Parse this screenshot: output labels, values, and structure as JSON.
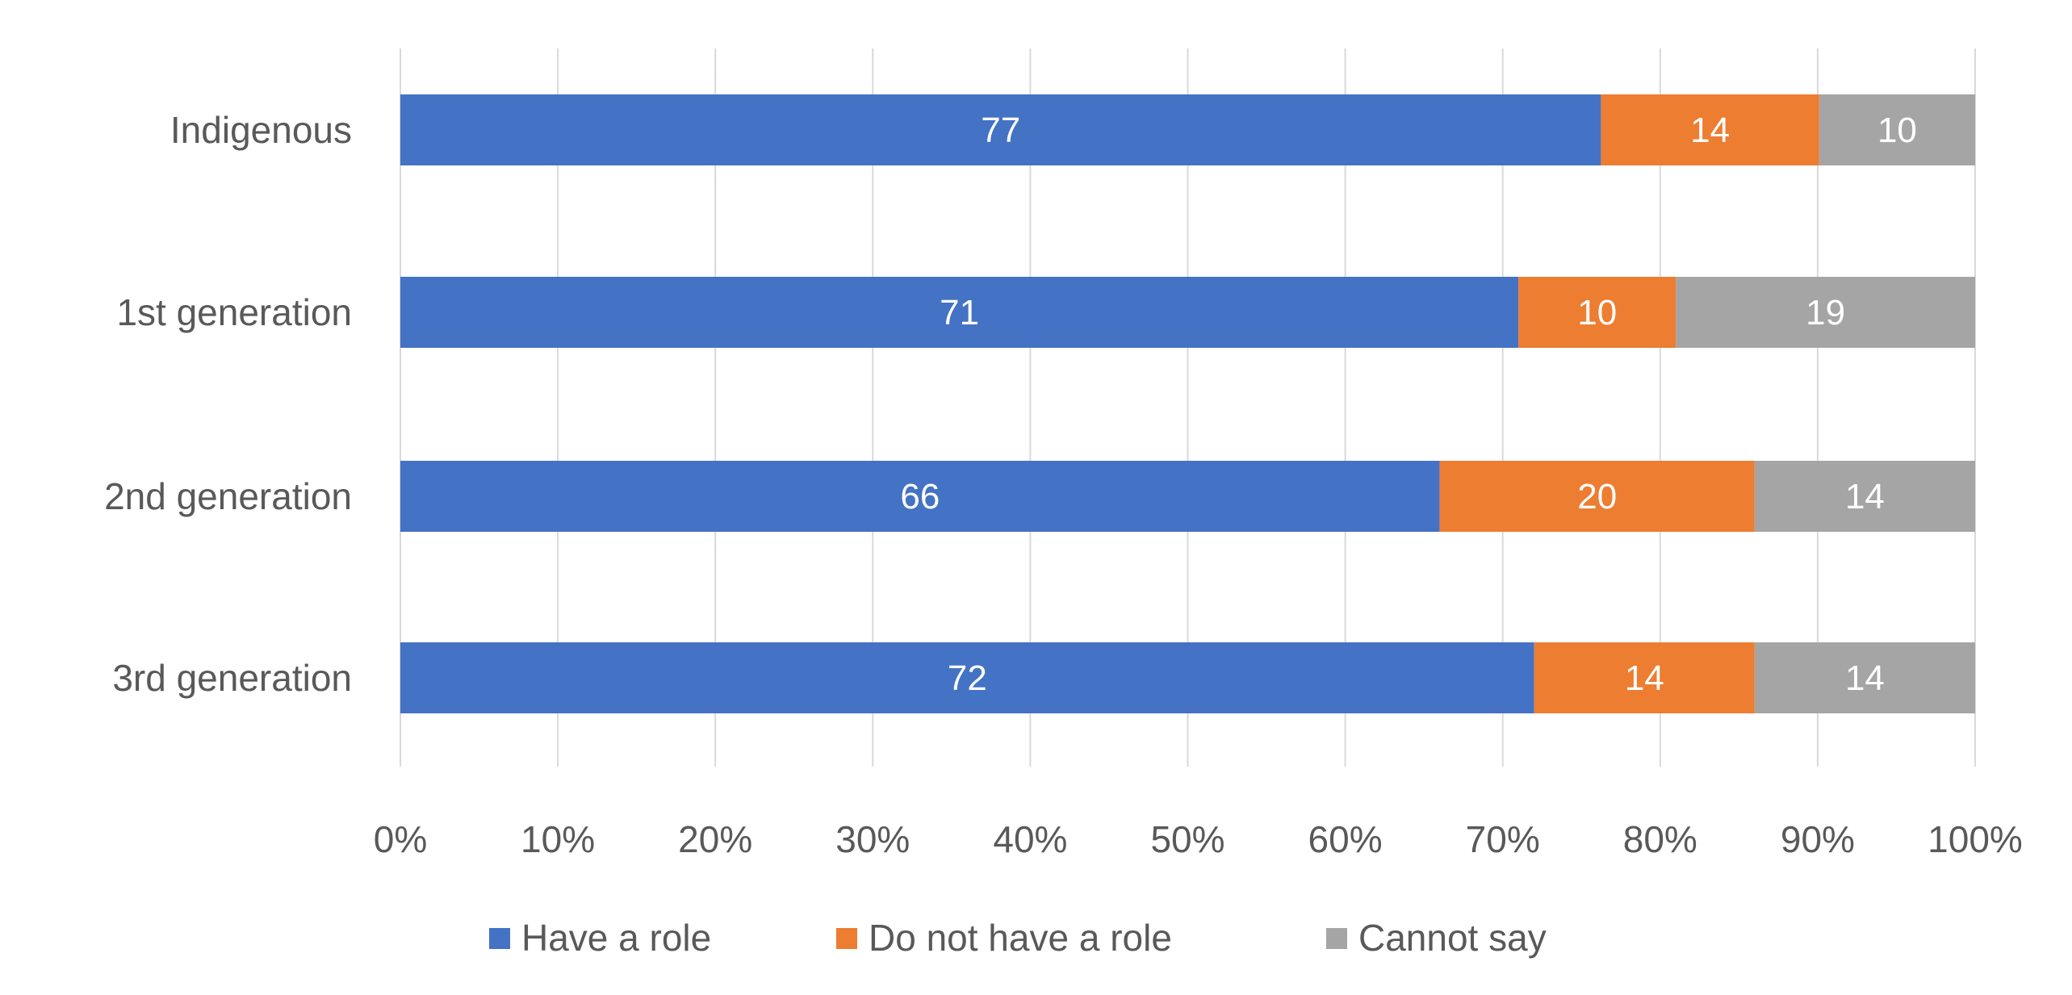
{
  "chart_data": {
    "type": "bar",
    "orientation": "horizontal",
    "stacked": "percent",
    "title": "",
    "xlabel": "",
    "ylabel": "",
    "categories": [
      "Indigenous",
      "1st generation",
      "2nd generation",
      "3rd generation"
    ],
    "series": [
      {
        "name": "Have a role",
        "color": "#4472C4",
        "values": [
          77,
          71,
          66,
          72
        ]
      },
      {
        "name": "Do not have a role",
        "color": "#ED7D31",
        "values": [
          14,
          10,
          20,
          14
        ]
      },
      {
        "name": "Cannot say",
        "color": "#A5A5A5",
        "values": [
          10,
          19,
          14,
          14
        ]
      }
    ],
    "xlim": [
      0,
      100
    ],
    "xticks": [
      "0%",
      "10%",
      "20%",
      "30%",
      "40%",
      "50%",
      "60%",
      "70%",
      "80%",
      "90%",
      "100%"
    ],
    "grid": true,
    "legend_position": "bottom"
  }
}
